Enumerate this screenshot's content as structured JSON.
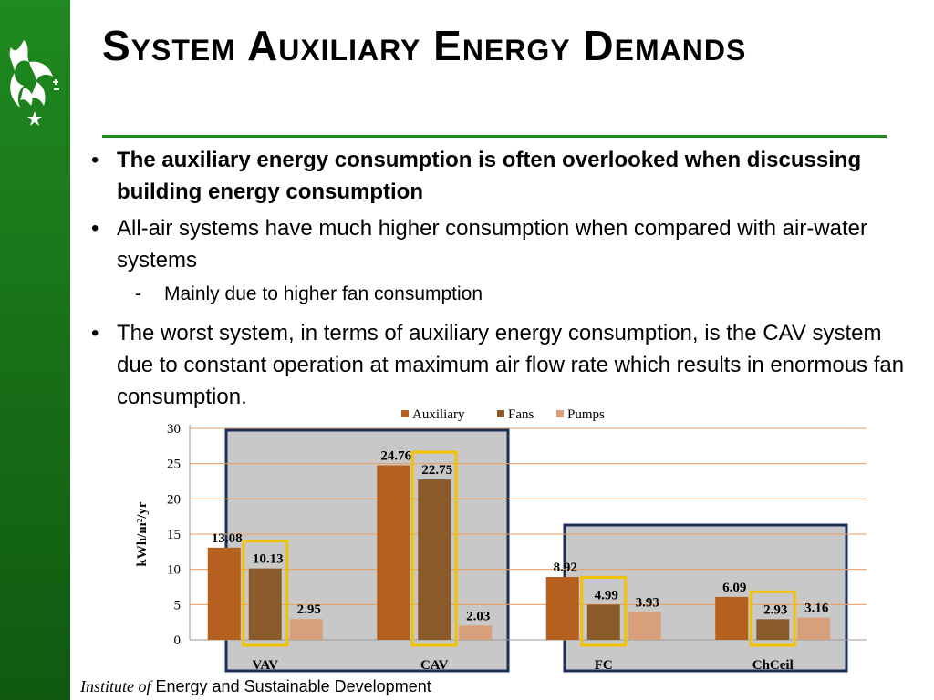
{
  "title": "System Auxiliary Energy Demands",
  "bullets": [
    {
      "text": "The auxiliary energy consumption is often overlooked when discussing building energy consumption",
      "bold": true
    },
    {
      "text": "All-air systems have much higher consumption when compared with air-water systems",
      "bold": false
    },
    {
      "text": "The worst system, in terms of auxiliary energy consumption, is the CAV system due to constant operation at maximum air flow rate which results in enormous fan consumption.",
      "bold": false
    }
  ],
  "sub_bullets": [
    {
      "text": "Mainly due to higher fan consumption"
    }
  ],
  "bullet_glyph": "•",
  "dash_glyph": "-",
  "footer": {
    "institute": "Institute of",
    "rest": "Energy and Sustainable Development"
  },
  "colors": {
    "sidebar_green": "#1f8a1f",
    "auxiliary": "#b5601f",
    "fans": "#8b5a2b",
    "pumps": "#d8a07a",
    "highlight_box": "#f2c200",
    "group_box": "#1a2f5a",
    "group_fill": "#c8c8c8"
  },
  "chart_data": {
    "type": "bar",
    "categories": [
      "VAV",
      "CAV",
      "FC",
      "ChCeil"
    ],
    "series": [
      {
        "name": "Auxiliary",
        "values": [
          13.08,
          24.76,
          8.92,
          6.09
        ]
      },
      {
        "name": "Fans",
        "values": [
          10.13,
          22.75,
          4.99,
          2.93
        ]
      },
      {
        "name": "Pumps",
        "values": [
          2.95,
          2.03,
          3.93,
          3.16
        ]
      }
    ],
    "value_labels": [
      [
        "13.08",
        "24.76",
        "8.92",
        "6.09"
      ],
      [
        "10.13",
        "22.75",
        "4.99",
        "2.93"
      ],
      [
        "2.95",
        "2.03",
        "3.93",
        "3.16"
      ]
    ],
    "ylabel": "kWh/m²/yr",
    "xlabel": "",
    "ylim": [
      0,
      30
    ],
    "yticks": [
      0,
      5,
      10,
      15,
      20,
      25,
      30
    ],
    "grid": true,
    "legend": "top-center",
    "highlight": "Fans bars boxed in yellow",
    "groups": [
      "All-air: VAV, CAV",
      "Air-water: FC, ChCeil"
    ]
  }
}
